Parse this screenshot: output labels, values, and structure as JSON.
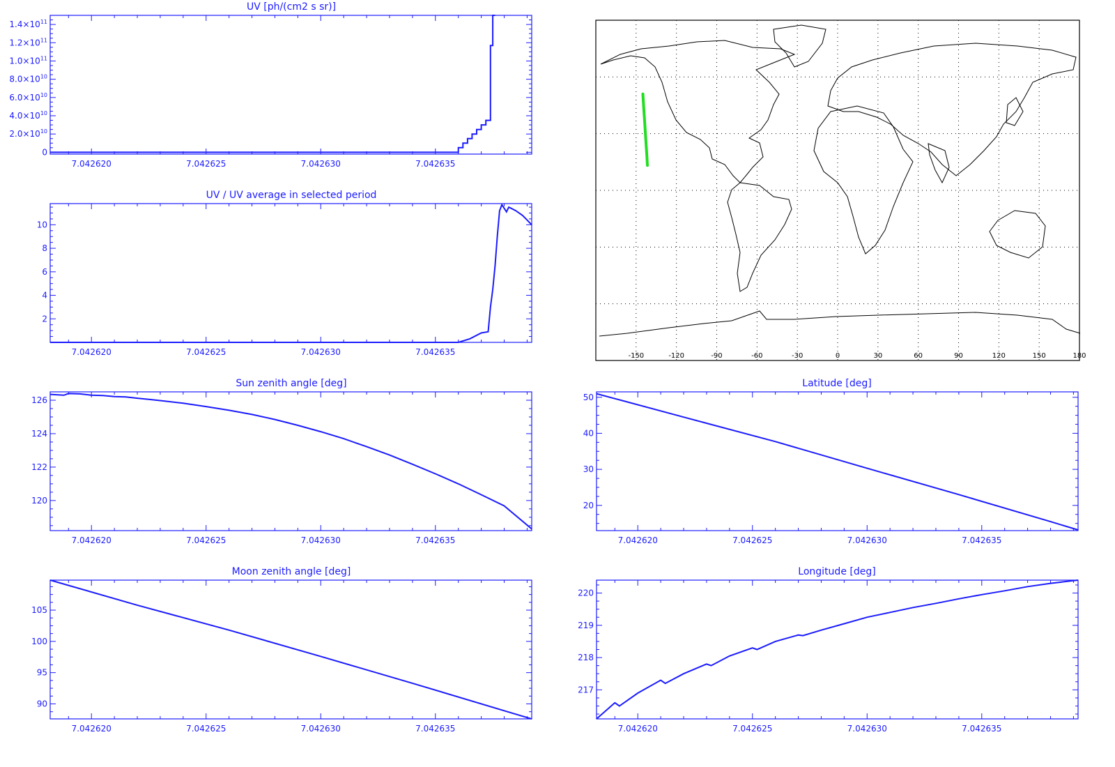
{
  "colors": {
    "plot": "#1a1aff",
    "track": "#22dd22",
    "map": "#000000"
  },
  "chart_data": [
    {
      "id": "uv",
      "type": "line",
      "step": true,
      "title": "UV [ph/(cm2 s sr)]",
      "xlim": [
        7.0426182,
        7.0426392
      ],
      "ylim": [
        -2000000000,
        150000000000
      ],
      "x_ticks": [
        7.04262,
        7.042625,
        7.04263,
        7.042635
      ],
      "x_tick_labels": [
        "7.042620",
        "7.042625",
        "7.042630",
        "7.042635"
      ],
      "y_ticks": [
        0,
        20000000000,
        40000000000,
        60000000000,
        80000000000,
        100000000000,
        120000000000,
        140000000000
      ],
      "y_tick_labels": [
        {
          "m": "0",
          "e": ""
        },
        {
          "m": "2.0×10",
          "e": "10"
        },
        {
          "m": "4.0×10",
          "e": "10"
        },
        {
          "m": "6.0×10",
          "e": "10"
        },
        {
          "m": "8.0×10",
          "e": "10"
        },
        {
          "m": "1.0×10",
          "e": "11"
        },
        {
          "m": "1.2×10",
          "e": "11"
        },
        {
          "m": "1.4×10",
          "e": "11"
        }
      ],
      "series": [
        {
          "x": [
            7.0426182,
            7.0426335,
            7.042636,
            7.042636,
            7.0426362,
            7.0426362,
            7.0426364,
            7.0426364,
            7.0426366,
            7.0426366,
            7.0426368,
            7.0426368,
            7.042637,
            7.042637,
            7.0426372,
            7.0426372,
            7.0426374,
            7.0426374,
            7.0426375,
            7.0426375,
            7.0426376,
            7.0426376
          ],
          "y": [
            0,
            0,
            0,
            5000000000,
            5000000000,
            10000000000,
            10000000000,
            15000000000,
            15000000000,
            20000000000,
            20000000000,
            25000000000,
            25000000000,
            30000000000,
            30000000000,
            35000000000,
            35000000000,
            117000000000,
            117000000000,
            150000000000,
            150000000000,
            150000000000
          ]
        }
      ]
    },
    {
      "id": "uv-ratio",
      "type": "line",
      "title": "UV / UV average in selected period",
      "xlim": [
        7.0426182,
        7.0426392
      ],
      "ylim": [
        0,
        11.8
      ],
      "x_ticks": [
        7.04262,
        7.042625,
        7.04263,
        7.042635
      ],
      "x_tick_labels": [
        "7.042620",
        "7.042625",
        "7.042630",
        "7.042635"
      ],
      "y_ticks": [
        2,
        4,
        6,
        8,
        10
      ],
      "y_tick_labels": [
        "2",
        "4",
        "6",
        "8",
        "10"
      ],
      "series": [
        {
          "x": [
            7.0426182,
            7.042636,
            7.0426365,
            7.042637,
            7.0426373,
            7.0426374,
            7.0426375,
            7.0426376,
            7.0426377,
            7.0426378,
            7.0426379,
            7.042638,
            7.0426381,
            7.0426382,
            7.0426383,
            7.0426385,
            7.0426388,
            7.042639,
            7.0426392
          ],
          "y": [
            0,
            0,
            0.3,
            0.8,
            0.9,
            3.0,
            4.5,
            6.5,
            9.0,
            11.2,
            11.7,
            11.4,
            11.1,
            11.5,
            11.4,
            11.2,
            10.8,
            10.4,
            10.0
          ]
        }
      ]
    },
    {
      "id": "sun-zenith",
      "type": "line",
      "title": "Sun zenith angle [deg]",
      "xlim": [
        7.0426182,
        7.0426392
      ],
      "ylim": [
        118.2,
        126.5
      ],
      "x_ticks": [
        7.04262,
        7.042625,
        7.04263,
        7.042635
      ],
      "x_tick_labels": [
        "7.042620",
        "7.042625",
        "7.042630",
        "7.042635"
      ],
      "y_ticks": [
        120,
        122,
        124,
        126
      ],
      "y_tick_labels": [
        "120",
        "122",
        "124",
        "126"
      ],
      "series": [
        {
          "x": [
            7.0426182,
            7.0426188,
            7.042619,
            7.0426195,
            7.04262,
            7.0426205,
            7.042621,
            7.0426215,
            7.042622,
            7.0426225,
            7.042623,
            7.042624,
            7.042625,
            7.042626,
            7.042627,
            7.042628,
            7.042629,
            7.04263,
            7.042631,
            7.042632,
            7.042633,
            7.042634,
            7.042635,
            7.042636,
            7.042637,
            7.042638,
            7.0426392
          ],
          "y": [
            126.35,
            126.3,
            126.4,
            126.38,
            126.3,
            126.28,
            126.22,
            126.2,
            126.12,
            126.05,
            125.98,
            125.82,
            125.62,
            125.4,
            125.15,
            124.85,
            124.5,
            124.12,
            123.7,
            123.22,
            122.72,
            122.17,
            121.6,
            121.0,
            120.35,
            119.68,
            118.3
          ]
        }
      ]
    },
    {
      "id": "latitude",
      "type": "line",
      "title": "Latitude [deg]",
      "xlim": [
        7.0426182,
        7.0426392
      ],
      "ylim": [
        13,
        51.5
      ],
      "x_ticks": [
        7.04262,
        7.042625,
        7.04263,
        7.042635
      ],
      "x_tick_labels": [
        "7.042620",
        "7.042625",
        "7.042630",
        "7.042635"
      ],
      "y_ticks": [
        20,
        30,
        40,
        50
      ],
      "y_tick_labels": [
        "20",
        "30",
        "40",
        "50"
      ],
      "series": [
        {
          "x": [
            7.0426182,
            7.042622,
            7.042626,
            7.04263,
            7.042634,
            7.042638,
            7.0426392
          ],
          "y": [
            51.0,
            44.5,
            37.7,
            30.3,
            23.0,
            15.5,
            13.2
          ]
        }
      ]
    },
    {
      "id": "moon-zenith",
      "type": "line",
      "title": "Moon zenith angle [deg]",
      "xlim": [
        7.0426182,
        7.0426392
      ],
      "ylim": [
        87.6,
        109.8
      ],
      "x_ticks": [
        7.04262,
        7.042625,
        7.04263,
        7.042635
      ],
      "x_tick_labels": [
        "7.042620",
        "7.042625",
        "7.042630",
        "7.042635"
      ],
      "y_ticks": [
        90,
        95,
        100,
        105
      ],
      "y_tick_labels": [
        "90",
        "95",
        "100",
        "105"
      ],
      "series": [
        {
          "x": [
            7.0426182,
            7.042622,
            7.042626,
            7.04263,
            7.042634,
            7.042638,
            7.0426392
          ],
          "y": [
            109.8,
            105.8,
            101.8,
            97.6,
            93.3,
            88.9,
            87.6
          ]
        }
      ]
    },
    {
      "id": "longitude",
      "type": "line",
      "title": "Longitude [deg]",
      "xlim": [
        7.0426182,
        7.0426392
      ],
      "ylim": [
        216.1,
        220.4
      ],
      "x_ticks": [
        7.04262,
        7.042625,
        7.04263,
        7.042635
      ],
      "x_tick_labels": [
        "7.042620",
        "7.042625",
        "7.042630",
        "7.042635"
      ],
      "y_ticks": [
        217,
        218,
        219,
        220
      ],
      "y_tick_labels": [
        "217",
        "218",
        "219",
        "220"
      ],
      "series": [
        {
          "x": [
            7.0426182,
            7.042619,
            7.0426192,
            7.04262,
            7.042621,
            7.0426212,
            7.042622,
            7.042623,
            7.0426232,
            7.042624,
            7.042625,
            7.0426252,
            7.042626,
            7.042627,
            7.0426272,
            7.042628,
            7.042629,
            7.04263,
            7.042631,
            7.042632,
            7.042633,
            7.042634,
            7.042635,
            7.042636,
            7.042637,
            7.042638,
            7.0426392
          ],
          "y": [
            216.1,
            216.6,
            216.5,
            216.9,
            217.3,
            217.2,
            217.5,
            217.8,
            217.75,
            218.05,
            218.3,
            218.25,
            218.5,
            218.7,
            218.68,
            218.85,
            219.05,
            219.25,
            219.4,
            219.55,
            219.68,
            219.82,
            219.95,
            220.07,
            220.2,
            220.3,
            220.4
          ]
        }
      ]
    },
    {
      "id": "map",
      "type": "map",
      "xlim": [
        -180,
        180
      ],
      "ylim": [
        -90,
        90
      ],
      "lon_ticks": [
        -150,
        -120,
        -90,
        -60,
        -30,
        0,
        30,
        60,
        90,
        120,
        150,
        180
      ],
      "lon_tick_labels": [
        "-150",
        "-120",
        "-90",
        "-60",
        "-30",
        "0",
        "30",
        "60",
        "90",
        "120",
        "150",
        "180"
      ],
      "lat_grid": [
        -60,
        -30,
        0,
        30,
        60
      ],
      "track": {
        "lon": [
          -145.0,
          -144.5,
          -144.0,
          -143.5,
          -143.0,
          -142.5,
          -142.0,
          -141.6
        ],
        "lat": [
          51.0,
          45.5,
          40.0,
          34.5,
          29.0,
          23.5,
          18.0,
          13.2
        ]
      }
    }
  ]
}
